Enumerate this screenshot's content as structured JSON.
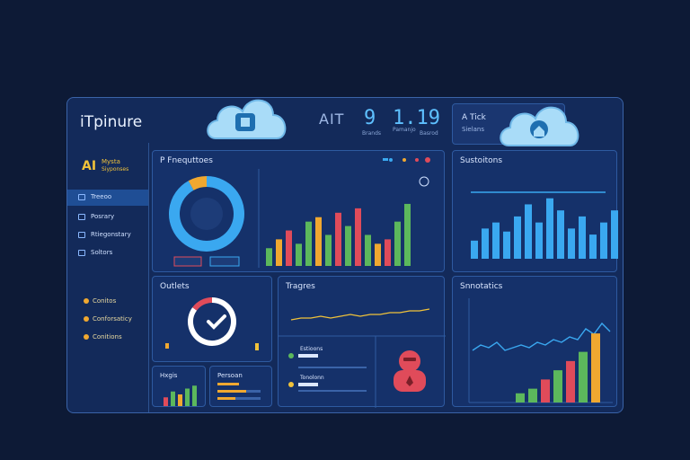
{
  "header": {
    "app_title": "iTpinure",
    "kpi_label": "AIT",
    "kpi1_value": "9",
    "kpi1_sub": "Brands",
    "kpi2_value": "1.19",
    "kpi2_sub_a": "Pamanjo",
    "kpi2_sub_b": "Basrod",
    "status_title": "A Tick",
    "status_sub": "Sielans"
  },
  "brand": {
    "ai": "AI",
    "name": "Mysta",
    "sub": "Siyponses"
  },
  "sidebar": {
    "items": [
      {
        "label": "Treeoo"
      },
      {
        "label": "Posrary"
      },
      {
        "label": "Rtiegonstary"
      },
      {
        "label": "Soltors"
      }
    ],
    "secondary": [
      {
        "label": "Conitos"
      },
      {
        "label": "Conforsaticy"
      },
      {
        "label": "Conitions"
      }
    ]
  },
  "panels": {
    "frequency_title": "P Fnequttoes",
    "sessions_title": "Sustoitons",
    "outlets_title": "Outlets",
    "trends_title": "Tragres",
    "statistics_title": "Snnotatics",
    "mini_bar_title": "Hxgis",
    "persons_title": "Persoan",
    "list_item1": "Estioons",
    "list_item2": "Tonolonn"
  },
  "colors": {
    "accent": "#5ec0ff",
    "green": "#5cb85c",
    "orange": "#f0a830",
    "red": "#e04b5a",
    "blue": "#3aa8f0"
  },
  "icons": {
    "cloud_left": "cloud-icon",
    "cloud_right": "cloud-icon",
    "check": "check-icon",
    "avatar": "person-alert-icon"
  },
  "chart_data": [
    {
      "type": "pie",
      "title": "",
      "values": [
        92,
        8
      ],
      "colors": [
        "#3aa8f0",
        "#f0a830"
      ]
    },
    {
      "type": "bar",
      "title": "",
      "values": [
        8,
        12,
        16,
        10,
        20,
        22,
        14,
        24,
        18,
        26,
        14,
        10,
        12,
        20,
        28
      ],
      "colors": [
        "#5cb85c",
        "#f0a830",
        "#e04b5a",
        "#5cb85c",
        "#5cb85c",
        "#f0a830",
        "#5cb85c",
        "#e04b5a",
        "#5cb85c",
        "#e04b5a",
        "#5cb85c",
        "#f0a830",
        "#e04b5a",
        "#5cb85c",
        "#5cb85c"
      ],
      "ylim": [
        0,
        30
      ]
    },
    {
      "type": "bar",
      "title": "",
      "values": [
        6,
        10,
        12,
        9,
        14,
        18,
        12,
        20,
        16,
        10,
        14,
        8,
        12,
        16
      ],
      "ylim": [
        0,
        22
      ],
      "line_values": [
        16,
        16,
        16,
        16,
        16,
        16,
        16,
        16,
        16,
        16,
        16,
        16,
        16,
        16
      ]
    },
    {
      "type": "pie",
      "title": "",
      "values": [
        85,
        15
      ],
      "colors": [
        "#ffffff",
        "#e04b5a"
      ]
    },
    {
      "type": "line",
      "title": "",
      "values": [
        4,
        5,
        5,
        6,
        5,
        6,
        7,
        6,
        7,
        7,
        8,
        8,
        9,
        9,
        10
      ],
      "ylim": [
        0,
        12
      ]
    },
    {
      "type": "line",
      "title": "",
      "values": [
        6,
        8,
        7,
        9,
        6,
        7,
        8,
        7,
        9,
        8,
        10,
        9,
        11,
        10,
        14,
        12,
        16,
        13
      ],
      "ylim": [
        0,
        20
      ]
    },
    {
      "type": "bar",
      "title": "",
      "values": [
        2,
        3,
        5,
        7,
        9,
        11,
        15
      ],
      "colors": [
        "#5cb85c",
        "#5cb85c",
        "#e04b5a",
        "#5cb85c",
        "#e04b5a",
        "#5cb85c",
        "#f0a830"
      ],
      "ylim": [
        0,
        16
      ]
    },
    {
      "type": "bar",
      "title": "",
      "values": [
        3,
        5,
        4,
        6,
        7
      ],
      "colors": [
        "#e04b5a",
        "#5cb85c",
        "#f0a830",
        "#5cb85c",
        "#5cb85c"
      ],
      "ylim": [
        0,
        8
      ]
    }
  ]
}
